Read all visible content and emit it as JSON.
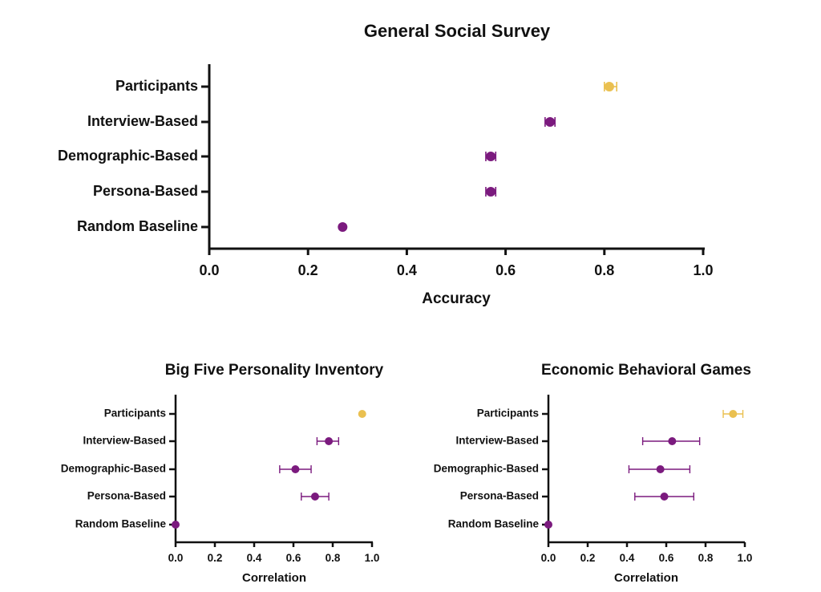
{
  "colors": {
    "participants": "#EAC050",
    "model": "#7B1A7E",
    "axis": "#111111"
  },
  "chart_data": [
    {
      "id": "gss",
      "type": "scatter",
      "title": "General Social Survey",
      "xlabel": "Accuracy",
      "xlim": [
        0.0,
        1.0
      ],
      "xticks": [
        "0.0",
        "0.2",
        "0.4",
        "0.6",
        "0.8",
        "1.0"
      ],
      "categories": [
        "Participants",
        "Interview-Based",
        "Demographic-Based",
        "Persona-Based",
        "Random Baseline"
      ],
      "points": [
        {
          "category": "Participants",
          "value": 0.81,
          "err_low": 0.8,
          "err_high": 0.825,
          "group": "participants"
        },
        {
          "category": "Interview-Based",
          "value": 0.69,
          "err_low": 0.68,
          "err_high": 0.7,
          "group": "model"
        },
        {
          "category": "Demographic-Based",
          "value": 0.57,
          "err_low": 0.56,
          "err_high": 0.58,
          "group": "model"
        },
        {
          "category": "Persona-Based",
          "value": 0.57,
          "err_low": 0.56,
          "err_high": 0.58,
          "group": "model"
        },
        {
          "category": "Random Baseline",
          "value": 0.27,
          "err_low": 0.27,
          "err_high": 0.27,
          "group": "model"
        }
      ]
    },
    {
      "id": "bigfive",
      "type": "scatter",
      "title": "Big Five Personality Inventory",
      "xlabel": "Correlation",
      "xlim": [
        0.0,
        1.0
      ],
      "xticks": [
        "0.0",
        "0.2",
        "0.4",
        "0.6",
        "0.8",
        "1.0"
      ],
      "categories": [
        "Participants",
        "Interview-Based",
        "Demographic-Based",
        "Persona-Based",
        "Random Baseline"
      ],
      "points": [
        {
          "category": "Participants",
          "value": 0.95,
          "err_low": 0.95,
          "err_high": 0.95,
          "group": "participants"
        },
        {
          "category": "Interview-Based",
          "value": 0.78,
          "err_low": 0.72,
          "err_high": 0.83,
          "group": "model"
        },
        {
          "category": "Demographic-Based",
          "value": 0.61,
          "err_low": 0.53,
          "err_high": 0.69,
          "group": "model"
        },
        {
          "category": "Persona-Based",
          "value": 0.71,
          "err_low": 0.64,
          "err_high": 0.78,
          "group": "model"
        },
        {
          "category": "Random Baseline",
          "value": 0.0,
          "err_low": 0.0,
          "err_high": 0.0,
          "group": "model"
        }
      ]
    },
    {
      "id": "econ",
      "type": "scatter",
      "title": "Economic Behavioral Games",
      "xlabel": "Correlation",
      "xlim": [
        0.0,
        1.0
      ],
      "xticks": [
        "0.0",
        "0.2",
        "0.4",
        "0.6",
        "0.8",
        "1.0"
      ],
      "categories": [
        "Participants",
        "Interview-Based",
        "Demographic-Based",
        "Persona-Based",
        "Random Baseline"
      ],
      "points": [
        {
          "category": "Participants",
          "value": 0.94,
          "err_low": 0.89,
          "err_high": 0.99,
          "group": "participants"
        },
        {
          "category": "Interview-Based",
          "value": 0.63,
          "err_low": 0.48,
          "err_high": 0.77,
          "group": "model"
        },
        {
          "category": "Demographic-Based",
          "value": 0.57,
          "err_low": 0.41,
          "err_high": 0.72,
          "group": "model"
        },
        {
          "category": "Persona-Based",
          "value": 0.59,
          "err_low": 0.44,
          "err_high": 0.74,
          "group": "model"
        },
        {
          "category": "Random Baseline",
          "value": 0.0,
          "err_low": 0.0,
          "err_high": 0.0,
          "group": "model"
        }
      ]
    }
  ]
}
